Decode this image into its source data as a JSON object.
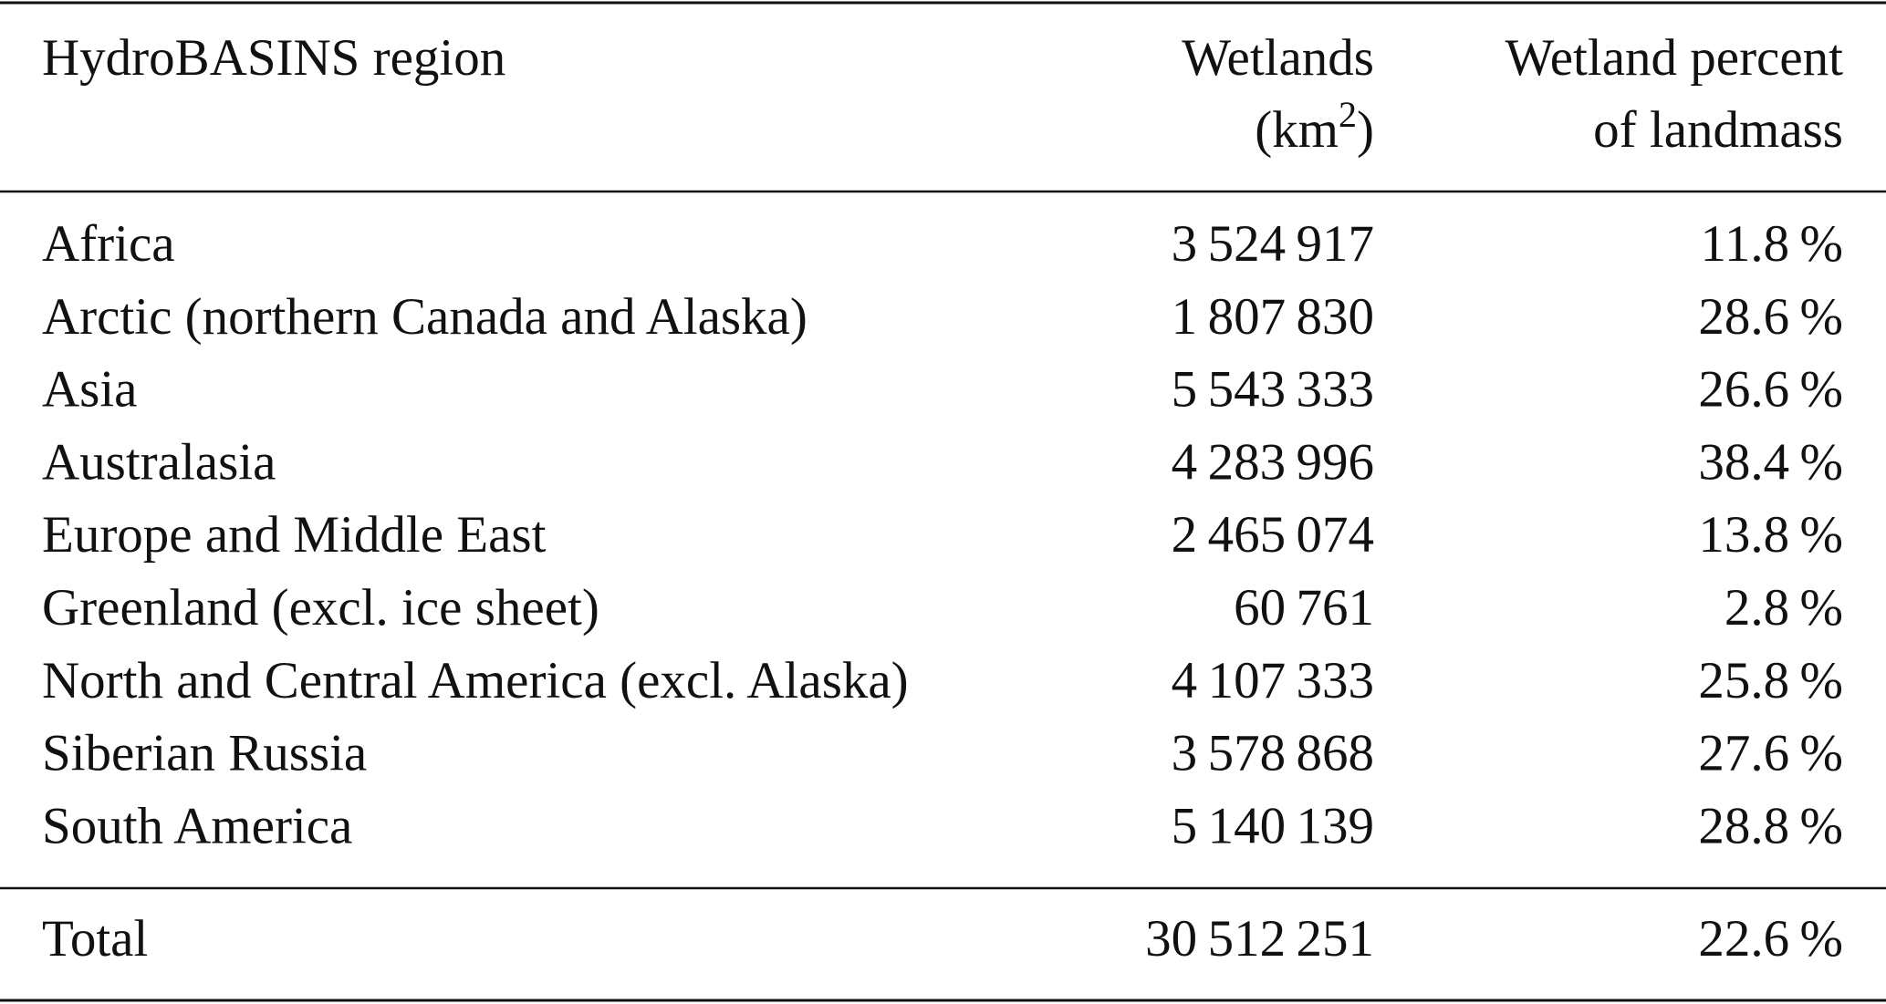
{
  "table": {
    "header": [
      {
        "lines": [
          "HydroBASINS region"
        ]
      },
      {
        "lines": [
          "Wetlands"
        ],
        "unit_open": "(km",
        "unit_sup": "2",
        "unit_close": ")"
      },
      {
        "lines": [
          "Wetland percent",
          "of landmass"
        ]
      }
    ],
    "rows": [
      [
        "Africa",
        "3 524 917",
        "11.8 %"
      ],
      [
        "Arctic (northern Canada and Alaska)",
        "1 807 830",
        "28.6 %"
      ],
      [
        "Asia",
        "5 543 333",
        "26.6 %"
      ],
      [
        "Australasia",
        "4 283 996",
        "38.4 %"
      ],
      [
        "Europe and Middle East",
        "2 465 074",
        "13.8 %"
      ],
      [
        "Greenland (excl. ice sheet)",
        "60 761",
        "2.8 %"
      ],
      [
        "North and Central America (excl. Alaska)",
        "4 107 333",
        "25.8 %"
      ],
      [
        "Siberian Russia",
        "3 578 868",
        "27.6 %"
      ],
      [
        "South America",
        "5 140 139",
        "28.8 %"
      ]
    ],
    "total": [
      "Total",
      "30 512 251",
      "22.6 %"
    ]
  }
}
